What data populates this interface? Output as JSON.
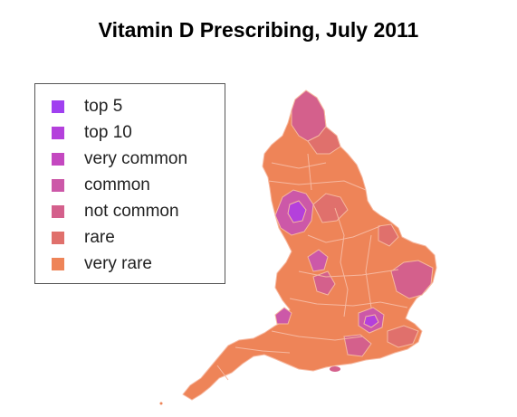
{
  "title": "Vitamin D Prescribing, July 2011",
  "legend": {
    "items": [
      {
        "label": "top 5",
        "color": "#a040f0"
      },
      {
        "label": "top 10",
        "color": "#b440dc"
      },
      {
        "label": "very common",
        "color": "#c448c0"
      },
      {
        "label": "common",
        "color": "#cc58a8"
      },
      {
        "label": "not common",
        "color": "#d4608c"
      },
      {
        "label": "rare",
        "color": "#e0706c"
      },
      {
        "label": "very rare",
        "color": "#ee8458"
      }
    ]
  },
  "map": {
    "region": "England",
    "base_color": "#ee8458",
    "border_color": "#f6b8a0"
  }
}
